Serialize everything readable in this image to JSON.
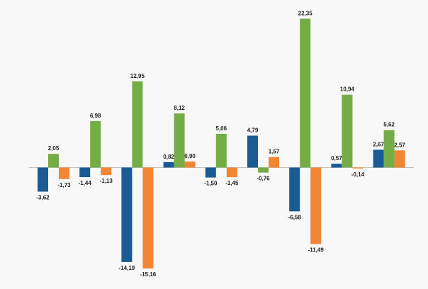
{
  "chart_data": {
    "type": "bar",
    "title": "",
    "xlabel": "",
    "ylabel": "",
    "grid": false,
    "legend": "none",
    "ylim": [
      -17,
      24
    ],
    "categories": [
      "",
      "",
      "",
      "",
      "",
      "",
      "",
      "",
      ""
    ],
    "colors": [
      "#1b5b94",
      "#74ad45",
      "#f28634"
    ],
    "series": [
      {
        "values": [
          -3.62,
          -1.44,
          -14.19,
          0.82,
          -1.5,
          4.79,
          -6.58,
          0.57,
          2.67
        ],
        "labels": [
          "-3,62",
          "-1,44",
          "-14,19",
          "0,82",
          "-1,50",
          "4,79",
          "-6,58",
          "0,57",
          "2,67"
        ]
      },
      {
        "values": [
          2.05,
          6.98,
          12.95,
          8.12,
          5.06,
          -0.76,
          22.35,
          10.94,
          5.62
        ],
        "labels": [
          "2,05",
          "6,98",
          "12,95",
          "8,12",
          "5,06",
          "-0,76",
          "22,35",
          "10,94",
          "5,62"
        ]
      },
      {
        "values": [
          -1.73,
          -1.13,
          -15.16,
          0.9,
          -1.45,
          1.57,
          -11.49,
          -0.14,
          2.57
        ],
        "labels": [
          "-1,73",
          "-1,13",
          "-15,16",
          "0,90",
          "-1,45",
          "1,57",
          "-11,49",
          "-0,14",
          "2,57"
        ]
      }
    ]
  }
}
